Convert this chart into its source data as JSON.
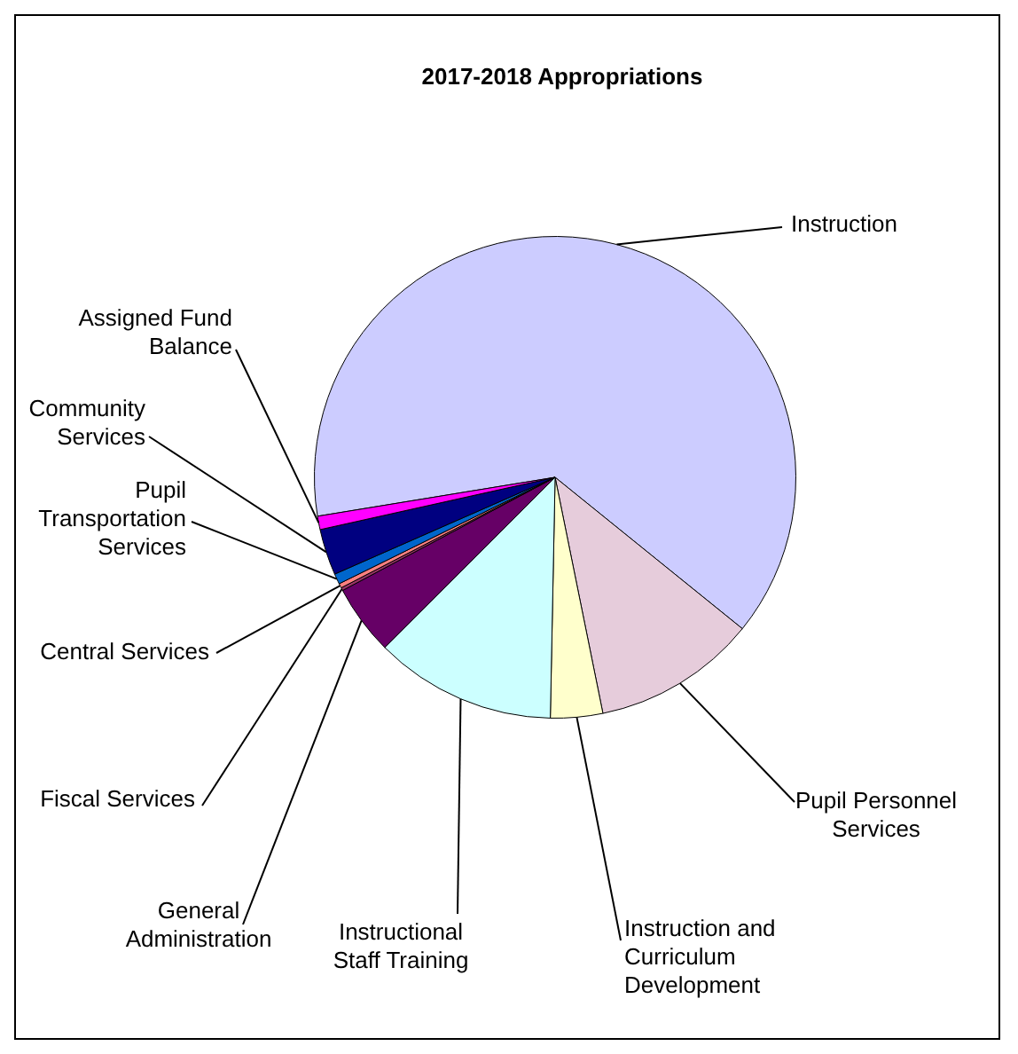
{
  "chart_data": {
    "type": "pie",
    "title": "2017-2018 Appropriations",
    "categories": [
      "Instruction",
      "Pupil Personnel Services",
      "Instruction and Curriculum Development",
      "Instructional Staff Training",
      "General Administration",
      "Fiscal Services",
      "Central Services",
      "Pupil Transportation Services",
      "Community Services",
      "Assigned Fund Balance"
    ],
    "values": [
      63.4,
      11.0,
      3.5,
      12.2,
      4.7,
      0.2,
      0.3,
      0.7,
      3.1,
      0.9
    ],
    "colors": [
      "#ccccff",
      "#e6ccdb",
      "#ffffcc",
      "#ccffff",
      "#660066",
      "#993366",
      "#ff8080",
      "#0066cc",
      "#000080",
      "#ff00ff"
    ],
    "legend": false
  }
}
